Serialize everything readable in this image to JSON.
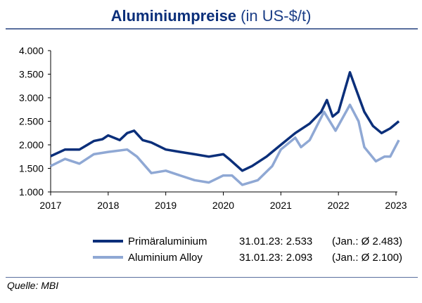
{
  "chart_data": {
    "type": "line",
    "title": "Aluminiumpreise",
    "subtitle": "(in US-$/t)",
    "xlabel": "",
    "ylabel": "",
    "ylim": [
      1000,
      4000
    ],
    "xlim": [
      2017,
      2023
    ],
    "yticks": [
      "1.000",
      "1.500",
      "2.000",
      "2.500",
      "3.000",
      "3.500",
      "4.000"
    ],
    "xticks": [
      "2017",
      "2018",
      "2019",
      "2020",
      "2021",
      "2022",
      "2023"
    ],
    "grid": false,
    "legend": "bottom",
    "series": [
      {
        "name": "Primäraluminium",
        "color": "#0b2f7a",
        "label": "31.01.23: 2.533",
        "avg": "(Jan.: Ø 2.483)",
        "x": [
          2017.0,
          2017.25,
          2017.5,
          2017.75,
          2017.9,
          2018.0,
          2018.2,
          2018.33,
          2018.45,
          2018.6,
          2018.75,
          2019.0,
          2019.25,
          2019.5,
          2019.75,
          2020.0,
          2020.1,
          2020.33,
          2020.5,
          2020.75,
          2021.0,
          2021.25,
          2021.5,
          2021.7,
          2021.8,
          2021.9,
          2022.0,
          2022.2,
          2022.3,
          2022.45,
          2022.6,
          2022.75,
          2022.9,
          2023.05
        ],
        "y": [
          1760,
          1900,
          1900,
          2080,
          2120,
          2200,
          2100,
          2250,
          2300,
          2100,
          2050,
          1900,
          1850,
          1800,
          1750,
          1800,
          1700,
          1450,
          1550,
          1750,
          2000,
          2250,
          2450,
          2700,
          2950,
          2600,
          2700,
          3540,
          3200,
          2700,
          2400,
          2250,
          2350,
          2500
        ]
      },
      {
        "name": "Aluminium Alloy",
        "color": "#8fa8d4",
        "label": "31.01.23: 2.093",
        "avg": "(Jan.: Ø 2.100)",
        "x": [
          2017.0,
          2017.25,
          2017.5,
          2017.75,
          2018.0,
          2018.33,
          2018.5,
          2018.75,
          2019.0,
          2019.25,
          2019.5,
          2019.75,
          2020.0,
          2020.15,
          2020.33,
          2020.6,
          2020.85,
          2021.0,
          2021.25,
          2021.35,
          2021.5,
          2021.75,
          2021.95,
          2022.2,
          2022.35,
          2022.45,
          2022.65,
          2022.8,
          2022.9,
          2023.05
        ],
        "y": [
          1550,
          1700,
          1600,
          1800,
          1850,
          1900,
          1750,
          1400,
          1450,
          1350,
          1250,
          1200,
          1350,
          1350,
          1150,
          1250,
          1550,
          1900,
          2150,
          1950,
          2100,
          2700,
          2300,
          2850,
          2500,
          1950,
          1650,
          1750,
          1750,
          2100
        ]
      }
    ],
    "source": "Quelle: MBI"
  }
}
